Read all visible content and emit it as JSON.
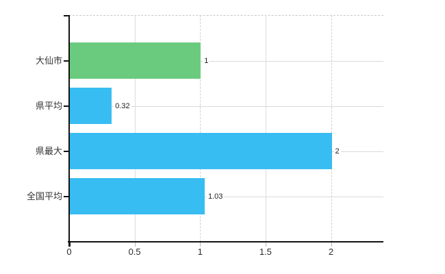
{
  "chart_data": {
    "type": "bar",
    "orientation": "horizontal",
    "title": "",
    "xlabel": "",
    "ylabel": "",
    "categories": [
      "大仙市",
      "県平均",
      "県最大",
      "全国平均"
    ],
    "values": [
      1,
      0.32,
      2,
      1.03
    ],
    "value_labels": [
      "1",
      "0.32",
      "2",
      "1.03"
    ],
    "bar_colors": [
      "#6acb7e",
      "#38bdf2",
      "#38bdf2",
      "#38bdf2"
    ],
    "x_ticks": [
      0,
      0.5,
      1,
      1.5,
      2
    ],
    "x_tick_labels": [
      "0",
      "0.5",
      "1",
      "1.5",
      "2"
    ],
    "xlim": [
      0,
      2.4
    ],
    "grid": true,
    "legend_position": "none",
    "colors": {
      "highlight_bar": "#6acb7e",
      "default_bar": "#38bdf2",
      "axis": "#111111",
      "gridline": "#dcdcdc",
      "dashed_gridline": "#cfcfcf",
      "tick_label": "#2b2b2b",
      "value_label": "#1c1c1c",
      "background": "#ffffff"
    }
  }
}
